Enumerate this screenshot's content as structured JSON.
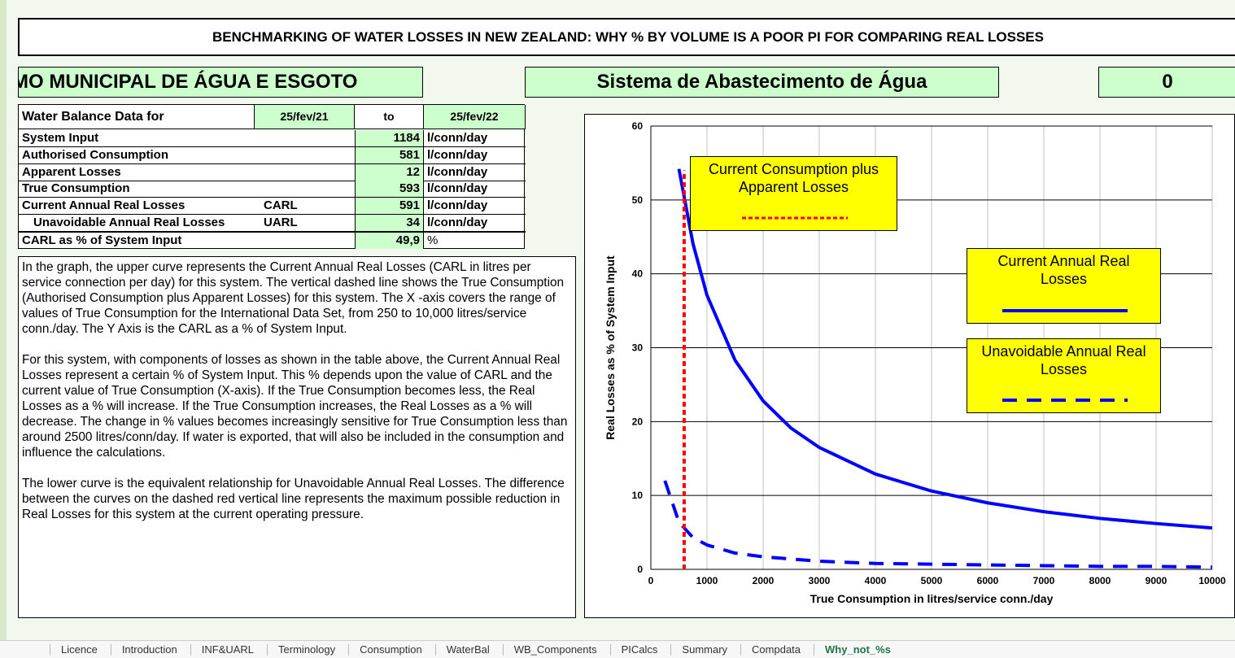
{
  "title": "BENCHMARKING OF WATER LOSSES IN NEW ZEALAND: WHY % BY VOLUME IS A POOR PI FOR COMPARING REAL LOSSES",
  "header": {
    "organization": "MO MUNICIPAL DE ÁGUA E ESGOTO",
    "system": "Sistema de Abastecimento de Água",
    "code": 0
  },
  "table": {
    "header": [
      "Water Balance Data for",
      "25/fev/21",
      "to",
      "25/fev/22"
    ],
    "rows": [
      {
        "label": "System Input",
        "value": 1184,
        "unit": "l/conn/day"
      },
      {
        "label": "Authorised Consumption",
        "value": 581,
        "unit": "l/conn/day"
      },
      {
        "label": "Apparent Losses",
        "value": 12,
        "unit": "l/conn/day"
      },
      {
        "label": "True Consumption",
        "value": 593,
        "unit": "l/conn/day"
      },
      {
        "label": "Current Annual Real Losses",
        "code": "CARL",
        "value": 591,
        "unit": "l/conn/day"
      },
      {
        "label": "Unavoidable Annual Real Losses",
        "code": "UARL",
        "value": 34,
        "unit": "l/conn/day"
      },
      {
        "label": "CARL as % of System Input",
        "value": "49,9",
        "unit": "%"
      }
    ]
  },
  "text": [
    "In the graph, the upper curve represents the Current Annual Real Losses (CARL in litres per service connection per day)  for this system. The vertical dashed line shows the True Consumption (Authorised Consumption plus Apparent Losses) for this system.  The X -axis covers the range of values of True Consumption for the International Data Set,  from 250 to 10,000 litres/service conn./day.  The Y Axis is the CARL as a % of System Input.",
    "For this system, with components of losses as shown in the table above, the Current Annual Real Losses represent a certain % of System Input. This % depends upon the value of CARL and the current value of True Consumption (X-axis). If the True Consumption becomes less, the Real Losses as a % will increase. If the True Consumption increases, the Real Losses as a % will decrease. The change in % values becomes increasingly sensitive for True Consumption less than around 2500 litres/conn/day. If water is exported, that will also be included in the consumption and influence the calculations.",
    "The lower curve is the equivalent relationship for Unavoidable Annual Real Losses. The difference between the curves on the dashed red vertical line represents the maximum possible reduction in Real Losses for this system at the current operating pressure."
  ],
  "chart": {
    "type": "line",
    "ylabel": "Real Losses as % of System Input",
    "xlabel": "True Consumption in litres/service conn./day",
    "xlim": [
      0,
      10000
    ],
    "xticks": [
      0,
      1000,
      2000,
      3000,
      4000,
      5000,
      6000,
      7000,
      8000,
      9000,
      10000
    ],
    "ylim": [
      0,
      60
    ],
    "yticks": [
      0,
      10,
      20,
      30,
      40,
      50,
      60
    ],
    "grid": true,
    "series": [
      {
        "name": "Current Annual Real Losses",
        "color": "#0000ff",
        "style": "solid",
        "x": [
          500,
          750,
          1000,
          1500,
          2000,
          2500,
          3000,
          4000,
          5000,
          6000,
          7000,
          8000,
          9000,
          10000
        ],
        "values": [
          54.2,
          44.1,
          37.1,
          28.3,
          22.8,
          19.1,
          16.5,
          12.9,
          10.6,
          9.0,
          7.8,
          6.9,
          6.2,
          5.6
        ]
      },
      {
        "name": "Unavoidable Annual Real Losses",
        "color": "#0000ff",
        "style": "dashed",
        "x": [
          250,
          500,
          750,
          1000,
          1500,
          2000,
          3000,
          4000,
          5000,
          6000,
          7000,
          8000,
          9000,
          10000
        ],
        "values": [
          12.0,
          6.4,
          4.3,
          3.3,
          2.2,
          1.7,
          1.1,
          0.8,
          0.7,
          0.6,
          0.5,
          0.4,
          0.4,
          0.3
        ]
      },
      {
        "name": "Current Consumption plus Apparent Losses",
        "color": "#ff0000",
        "style": "dotted",
        "x": [
          593,
          593
        ],
        "values": [
          0,
          54
        ]
      }
    ]
  },
  "tabs": [
    "Licence",
    "Introduction",
    "INF&UARL",
    "Terminology",
    "Consumption",
    "WaterBal",
    "WB_Components",
    "PICalcs",
    "Summary",
    "Compdata",
    "Why_not_%s"
  ],
  "active_tab": 10
}
